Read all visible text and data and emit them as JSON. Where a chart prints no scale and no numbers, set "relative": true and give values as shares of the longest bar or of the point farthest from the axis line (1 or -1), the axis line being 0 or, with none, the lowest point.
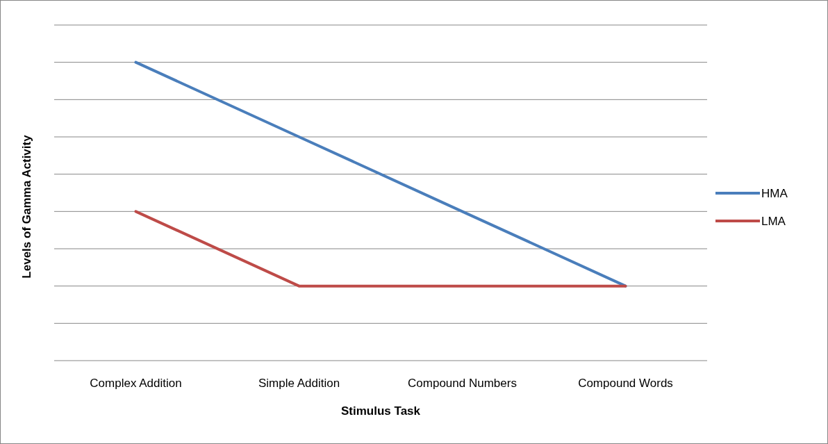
{
  "chart_data": {
    "type": "line",
    "xlabel": "Stimulus Task",
    "ylabel": "Levels of Gamma Activity",
    "categories": [
      "Complex Addition",
      "Simple Addition",
      "Compound Numbers",
      "Compound Words"
    ],
    "relative": true,
    "grid": true,
    "legend": "right",
    "marker": "none",
    "line_style": "solid",
    "series": [
      {
        "name": "HMA",
        "color": "#4a7ebb",
        "values": [
          1,
          0.75,
          0.5,
          0.25
        ]
      },
      {
        "name": "LMA",
        "color": "#be4b48",
        "values": [
          0.5,
          0.25,
          0.25,
          0.25
        ]
      }
    ]
  }
}
